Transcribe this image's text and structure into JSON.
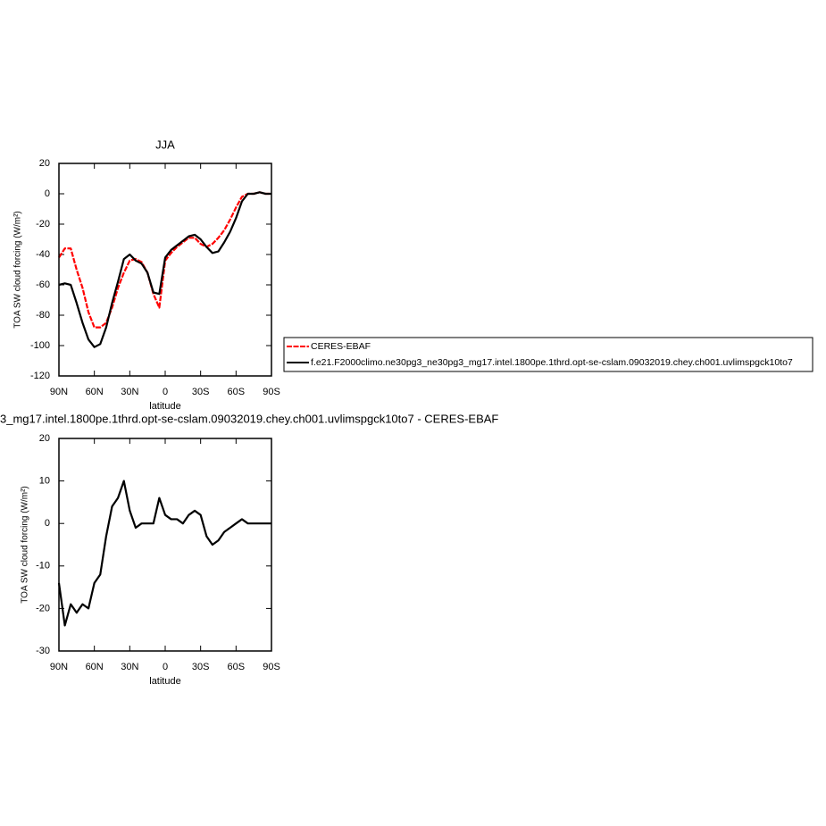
{
  "chart_data": [
    {
      "type": "line",
      "title": "JJA",
      "xlabel": "latitude",
      "ylabel": "TOA SW cloud forcing (W/m²)",
      "x": [
        90,
        85,
        80,
        75,
        70,
        65,
        60,
        55,
        50,
        45,
        40,
        35,
        30,
        25,
        20,
        15,
        10,
        5,
        0,
        -5,
        -10,
        -15,
        -20,
        -25,
        -30,
        -35,
        -40,
        -45,
        -50,
        -55,
        -60,
        -65,
        -70,
        -75,
        -80,
        -85,
        -90
      ],
      "series": [
        {
          "name": "CERES-EBAF",
          "color": "#ff0000",
          "dashed": true,
          "values": [
            -42,
            -36,
            -36,
            -50,
            -62,
            -78,
            -88,
            -88,
            -85,
            -75,
            -62,
            -52,
            -44,
            -43,
            -45,
            -52,
            -66,
            -75,
            -44,
            -39,
            -35,
            -32,
            -29,
            -29,
            -33,
            -35,
            -33,
            -29,
            -24,
            -17,
            -9,
            -2,
            0,
            0,
            1,
            0,
            0
          ]
        },
        {
          "name": "f.e21.F2000climo.ne30pg3_ne30pg3_mg17.intel.1800pe.1thrd.opt-se-cslam.09032019.chey.ch001.uvlimspgck10to7",
          "color": "#000000",
          "dashed": false,
          "values": [
            -60,
            -59,
            -60,
            -72,
            -85,
            -96,
            -101,
            -99,
            -88,
            -72,
            -58,
            -43,
            -40,
            -44,
            -46,
            -52,
            -65,
            -66,
            -42,
            -37,
            -34,
            -31,
            -28,
            -27,
            -30,
            -35,
            -39,
            -38,
            -32,
            -25,
            -16,
            -5,
            0,
            0,
            1,
            0,
            0
          ]
        }
      ],
      "xlim": [
        90,
        -90
      ],
      "xticks": [
        {
          "value": 90,
          "label": "90N"
        },
        {
          "value": 60,
          "label": "60N"
        },
        {
          "value": 30,
          "label": "30N"
        },
        0,
        {
          "value": -30,
          "label": "30S"
        },
        {
          "value": -60,
          "label": "60S"
        },
        {
          "value": -90,
          "label": "90S"
        }
      ],
      "ylim": [
        -120,
        20
      ],
      "yticks": [
        -120,
        -100,
        -80,
        -60,
        -40,
        -20,
        0,
        20
      ],
      "legend": "right"
    },
    {
      "type": "line",
      "title": "3_mg17.intel.1800pe.1thrd.opt-se-cslam.09032019.chey.ch001.uvlimspgck10to7 - CERES-EBAF",
      "xlabel": "latitude",
      "ylabel": "TOA SW cloud forcing (W/m²)",
      "x": [
        90,
        85,
        80,
        75,
        70,
        65,
        60,
        55,
        50,
        45,
        40,
        35,
        30,
        25,
        20,
        15,
        10,
        5,
        0,
        -5,
        -10,
        -15,
        -20,
        -25,
        -30,
        -35,
        -40,
        -45,
        -50,
        -55,
        -60,
        -65,
        -70,
        -75,
        -80,
        -85,
        -90
      ],
      "series": [
        {
          "color": "#000000",
          "dashed": false,
          "values": [
            -14,
            -24,
            -19,
            -21,
            -19,
            -20,
            -14,
            -12,
            -3,
            4,
            6,
            10,
            3,
            -1,
            0,
            0,
            0,
            6,
            2,
            1,
            1,
            0,
            2,
            3,
            2,
            -3,
            -5,
            -4,
            -2,
            -1,
            0,
            1,
            0,
            0,
            0,
            0,
            0
          ]
        }
      ],
      "xlim": [
        90,
        -90
      ],
      "xticks": [
        {
          "value": 90,
          "label": "90N"
        },
        {
          "value": 60,
          "label": "60N"
        },
        {
          "value": 30,
          "label": "30N"
        },
        0,
        {
          "value": -30,
          "label": "30S"
        },
        {
          "value": -60,
          "label": "60S"
        },
        {
          "value": -90,
          "label": "90S"
        }
      ],
      "ylim": [
        -30,
        20
      ],
      "yticks": [
        -30,
        -20,
        -10,
        0,
        10,
        20
      ]
    }
  ]
}
